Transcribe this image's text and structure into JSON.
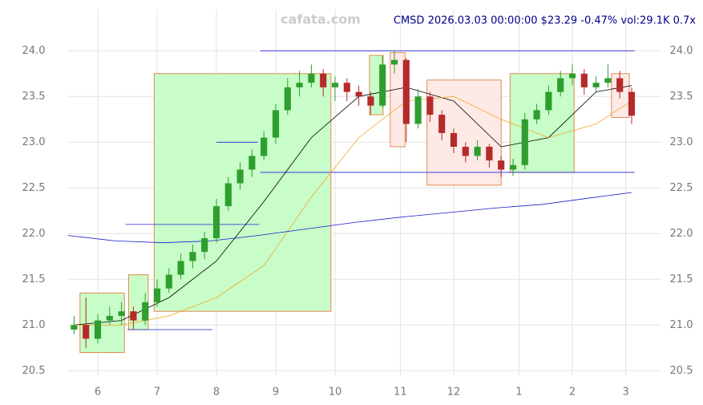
{
  "chart_data": {
    "type": "candlestick",
    "title": "CMSD 2026.03.03 00:00:00 $23.29 -0.47% vol:29.1K 0.7x",
    "watermark": "cafata.com",
    "xlim": [
      0,
      100
    ],
    "xticks": [
      {
        "value": 5,
        "label": "6"
      },
      {
        "value": 15,
        "label": "7"
      },
      {
        "value": 25,
        "label": "8"
      },
      {
        "value": 35,
        "label": "9"
      },
      {
        "value": 45,
        "label": "10"
      },
      {
        "value": 56,
        "label": "11"
      },
      {
        "value": 65,
        "label": "12"
      },
      {
        "value": 76,
        "label": "1"
      },
      {
        "value": 85,
        "label": "2"
      },
      {
        "value": 94,
        "label": "3"
      }
    ],
    "ylim": [
      20.45,
      24.45
    ],
    "yticks": [
      20.5,
      {
        "value": 21,
        "label": "21.0"
      },
      21.5,
      {
        "value": 22,
        "label": "22.0"
      },
      22.5,
      {
        "value": 23,
        "label": "23.0"
      },
      23.5,
      {
        "value": 24,
        "label": "24.0"
      }
    ],
    "grid": true,
    "up_color": "#2e9e2e",
    "down_color": "#b52a2a",
    "x": [
      1,
      3,
      5,
      7,
      9,
      11,
      13,
      15,
      17,
      19,
      21,
      23,
      25,
      27,
      29,
      31,
      33,
      35,
      37,
      39,
      41,
      43,
      45,
      47,
      49,
      51,
      53,
      55,
      57,
      59,
      61,
      63,
      65,
      67,
      69,
      71,
      73,
      75,
      77,
      79,
      81,
      83,
      85,
      87,
      89,
      91,
      93,
      95
    ],
    "open": [
      20.95,
      21.0,
      20.85,
      21.05,
      21.1,
      21.15,
      21.05,
      21.25,
      21.4,
      21.55,
      21.7,
      21.8,
      21.95,
      22.3,
      22.55,
      22.7,
      22.85,
      23.05,
      23.35,
      23.6,
      23.65,
      23.75,
      23.6,
      23.65,
      23.55,
      23.5,
      23.4,
      23.85,
      23.9,
      23.2,
      23.5,
      23.3,
      23.1,
      22.95,
      22.85,
      22.95,
      22.8,
      22.7,
      22.75,
      23.25,
      23.35,
      23.55,
      23.7,
      23.75,
      23.6,
      23.65,
      23.7,
      23.55
    ],
    "high": [
      21.1,
      21.3,
      21.12,
      21.2,
      21.25,
      21.2,
      21.35,
      21.5,
      21.62,
      21.78,
      21.88,
      22.02,
      22.38,
      22.62,
      22.78,
      22.92,
      23.12,
      23.42,
      23.7,
      23.78,
      23.85,
      23.8,
      23.72,
      23.7,
      23.62,
      23.55,
      23.95,
      24.0,
      23.92,
      23.58,
      23.55,
      23.35,
      23.15,
      23.0,
      23.02,
      22.98,
      22.85,
      22.82,
      23.32,
      23.42,
      23.62,
      23.78,
      23.85,
      23.8,
      23.72,
      23.85,
      23.78,
      23.6
    ],
    "low": [
      20.9,
      20.75,
      20.8,
      21.0,
      21.0,
      20.95,
      21.0,
      21.2,
      21.35,
      21.5,
      21.62,
      21.72,
      21.9,
      22.25,
      22.48,
      22.62,
      22.8,
      22.98,
      23.3,
      23.5,
      23.6,
      23.5,
      23.45,
      23.45,
      23.4,
      23.3,
      23.38,
      23.75,
      23.0,
      23.15,
      23.22,
      23.02,
      22.88,
      22.78,
      22.8,
      22.72,
      22.62,
      22.63,
      22.7,
      23.2,
      23.3,
      23.5,
      23.62,
      23.52,
      23.55,
      23.6,
      23.48,
      23.2
    ],
    "close": [
      21.0,
      20.85,
      21.05,
      21.1,
      21.15,
      21.05,
      21.25,
      21.4,
      21.55,
      21.7,
      21.8,
      21.95,
      22.3,
      22.55,
      22.7,
      22.85,
      23.05,
      23.35,
      23.6,
      23.65,
      23.75,
      23.6,
      23.65,
      23.55,
      23.5,
      23.4,
      23.85,
      23.9,
      23.2,
      23.5,
      23.3,
      23.1,
      22.95,
      22.85,
      22.95,
      22.8,
      22.7,
      22.75,
      23.25,
      23.35,
      23.55,
      23.7,
      23.75,
      23.6,
      23.65,
      23.7,
      23.55,
      23.29
    ],
    "lines": [
      {
        "color": "#000000",
        "x": [
          1,
          9,
          17,
          25,
          33,
          41,
          49,
          57,
          65,
          73,
          81,
          89,
          95
        ],
        "values": [
          21.0,
          21.05,
          21.3,
          21.7,
          22.35,
          23.05,
          23.5,
          23.6,
          23.45,
          22.95,
          23.05,
          23.55,
          23.62
        ]
      },
      {
        "color": "#f5a623",
        "x": [
          1,
          9,
          17,
          25,
          33,
          41,
          49,
          57,
          65,
          73,
          81,
          89,
          95
        ],
        "values": [
          21.0,
          21.0,
          21.1,
          21.3,
          21.65,
          22.4,
          23.05,
          23.45,
          23.5,
          23.25,
          23.05,
          23.2,
          23.45
        ]
      },
      {
        "color": "#1a1acc",
        "x": [
          0,
          8,
          16,
          24,
          32,
          40,
          48,
          56,
          64,
          72,
          80,
          88,
          95
        ],
        "values": [
          21.98,
          21.92,
          21.9,
          21.92,
          21.98,
          22.05,
          22.12,
          22.18,
          22.23,
          22.28,
          22.32,
          22.39,
          22.45
        ]
      }
    ],
    "levels": [
      {
        "y": 24.0,
        "x": [
          32.4,
          95.5
        ]
      },
      {
        "y": 23.0,
        "x": [
          25,
          32
        ]
      },
      {
        "y": 22.67,
        "x": [
          32.4,
          95.5
        ]
      },
      {
        "y": 22.1,
        "x": [
          9.7,
          32.2
        ]
      },
      {
        "y": 20.95,
        "x": [
          10,
          24.3
        ]
      }
    ],
    "zones": [
      {
        "kind": "up",
        "x": [
          2,
          9.5
        ],
        "y": [
          20.7,
          21.35
        ]
      },
      {
        "kind": "up",
        "x": [
          10.2,
          13.5
        ],
        "y": [
          20.95,
          21.55
        ]
      },
      {
        "kind": "up",
        "x": [
          14.5,
          44.3
        ],
        "y": [
          21.15,
          23.75
        ]
      },
      {
        "kind": "up",
        "x": [
          50.8,
          53.1
        ],
        "y": [
          23.3,
          23.95
        ]
      },
      {
        "kind": "down",
        "x": [
          54.3,
          56.8
        ],
        "y": [
          22.95,
          23.98
        ]
      },
      {
        "kind": "down",
        "x": [
          60.5,
          73
        ],
        "y": [
          22.53,
          23.68
        ]
      },
      {
        "kind": "up",
        "x": [
          74.5,
          85.3
        ],
        "y": [
          22.67,
          23.75
        ]
      },
      {
        "kind": "down",
        "x": [
          91.6,
          94.6
        ],
        "y": [
          23.27,
          23.75
        ]
      }
    ]
  }
}
